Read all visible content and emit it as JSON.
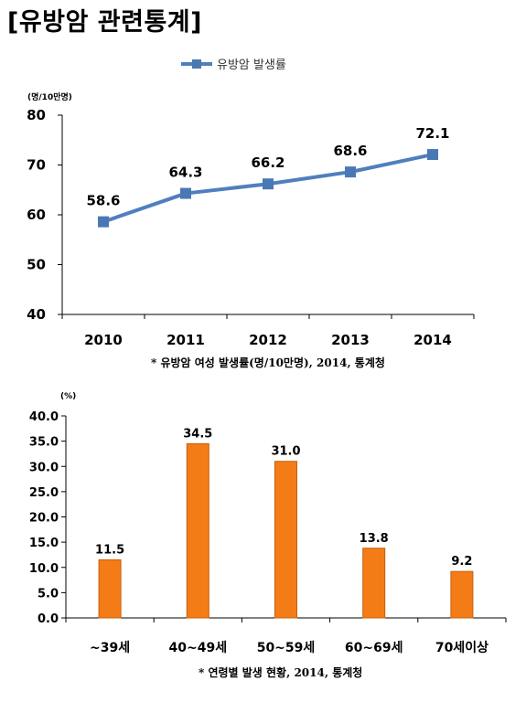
{
  "page": {
    "title": "[유방암 관련통계]"
  },
  "colors": {
    "line": "#4f7fbe",
    "marker": "#4a78b5",
    "bar": "#f47c17",
    "bar_edge": "#c95e08",
    "axis": "#000000",
    "grid": "#000000"
  },
  "chart_data": [
    {
      "type": "line",
      "legend": "유방암 발생률",
      "legend_position": "top-center",
      "unit": "(명/10만명)",
      "categories": [
        "2010",
        "2011",
        "2012",
        "2013",
        "2014"
      ],
      "series": [
        {
          "name": "유방암 발생률",
          "values": [
            58.6,
            64.3,
            66.2,
            68.6,
            72.1
          ]
        }
      ],
      "data_labels": [
        "58.6",
        "64.3",
        "66.2",
        "68.6",
        "72.1"
      ],
      "ylim": [
        40,
        80
      ],
      "yticks": [
        40,
        50,
        60,
        70,
        80
      ],
      "ytick_labels": [
        "40",
        "50",
        "60",
        "70",
        "80"
      ],
      "grid": false,
      "source": "* 유방암 여성 발생률(명/10만명), 2014, 통계청"
    },
    {
      "type": "bar",
      "unit": "(%)",
      "categories": [
        "~39세",
        "40~49세",
        "50~59세",
        "60~69세",
        "70세이상"
      ],
      "values": [
        11.5,
        34.5,
        31.0,
        13.8,
        9.2
      ],
      "data_labels": [
        "11.5",
        "34.5",
        "31.0",
        "13.8",
        "9.2"
      ],
      "ylim": [
        0,
        40
      ],
      "yticks": [
        0,
        5,
        10,
        15,
        20,
        25,
        30,
        35,
        40
      ],
      "ytick_labels": [
        "0.0",
        "5.0",
        "10.0",
        "15.0",
        "20.0",
        "25.0",
        "30.0",
        "35.0",
        "40.0"
      ],
      "grid": false,
      "source": "* 연령별 발생 현황, 2014, 통계청"
    }
  ]
}
